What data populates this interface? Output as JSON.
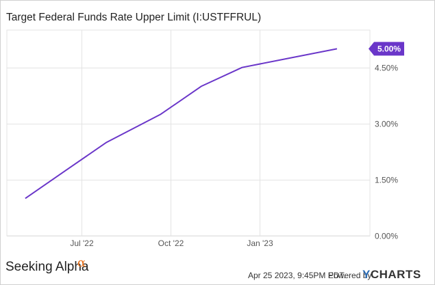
{
  "chart_data": {
    "type": "line",
    "title": "Target Federal Funds Rate Upper Limit (I:USTFFRUL)",
    "x": [
      "2022-05-04",
      "2022-06-15",
      "2022-07-27",
      "2022-09-21",
      "2022-11-02",
      "2022-12-14",
      "2023-02-01",
      "2023-03-22"
    ],
    "series": [
      {
        "values": [
          1.0,
          1.75,
          2.5,
          3.25,
          4.0,
          4.5,
          4.75,
          5.0
        ],
        "color": "#6a36c9"
      }
    ],
    "x_tick_labels": [
      "Jul '22",
      "Oct '22",
      "Jan '23"
    ],
    "x_tick_dates": [
      "2022-07-01",
      "2022-10-01",
      "2023-01-01"
    ],
    "xlim": [
      "2022-04-15",
      "2023-04-25"
    ],
    "y_tick_values": [
      0,
      1.5,
      3,
      4.5
    ],
    "y_tick_labels": [
      "0.00%",
      "1.50%",
      "3.00%",
      "4.50%"
    ],
    "ylim": [
      0,
      5.5
    ],
    "end_label": "5.00%",
    "grid": true,
    "xlabel": "",
    "ylabel": ""
  },
  "footer": {
    "brand": "Seeking Alpha",
    "brand_mark": "α",
    "timestamp": "Apr 25 2023, 9:45PM EDT.",
    "powered_by": "Powered by",
    "logo_y": "Y",
    "logo_rest": "CHARTS"
  },
  "colors": {
    "line": "#6a36c9",
    "grid": "#e3e3e3",
    "brand_accent": "#e8701a",
    "logo_y": "#2a6bb3"
  }
}
